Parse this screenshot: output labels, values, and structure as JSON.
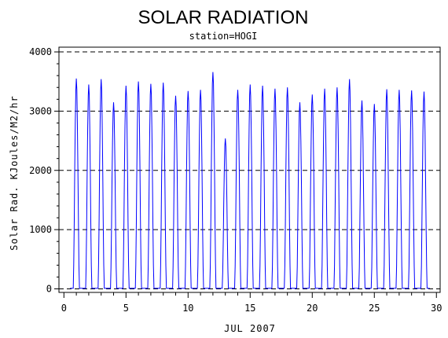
{
  "chart_data": {
    "type": "line",
    "title": "SOLAR RADIATION",
    "subtitle": "station=HOGI",
    "xlabel": "JUL 2007",
    "ylabel": "Solar Rad. KJoules/M2/hr",
    "xlim": [
      -0.4,
      30.3
    ],
    "ylim": [
      -60,
      4080
    ],
    "xticks": [
      0,
      5,
      10,
      15,
      20,
      25,
      30
    ],
    "xtick_labels": [
      "0",
      "5",
      "10",
      "15",
      "20",
      "25",
      "30"
    ],
    "yticks": [
      0,
      1000,
      2000,
      3000,
      4000
    ],
    "ytick_labels": [
      "0",
      "1000",
      "2000",
      "3000",
      "4000"
    ],
    "grid": "horizontal-dashed",
    "color": "#0000ff",
    "series": [
      {
        "name": "",
        "daily_peaks": [
          {
            "day": 1,
            "peak": 3550
          },
          {
            "day": 2,
            "peak": 3450
          },
          {
            "day": 3,
            "peak": 3540
          },
          {
            "day": 4,
            "peak": 3150
          },
          {
            "day": 5,
            "peak": 3430
          },
          {
            "day": 6,
            "peak": 3500
          },
          {
            "day": 7,
            "peak": 3460
          },
          {
            "day": 8,
            "peak": 3480
          },
          {
            "day": 9,
            "peak": 3260
          },
          {
            "day": 10,
            "peak": 3340
          },
          {
            "day": 11,
            "peak": 3360
          },
          {
            "day": 12,
            "peak": 3660
          },
          {
            "day": 13,
            "peak": 2540
          },
          {
            "day": 14,
            "peak": 3360
          },
          {
            "day": 15,
            "peak": 3450
          },
          {
            "day": 16,
            "peak": 3430
          },
          {
            "day": 17,
            "peak": 3380
          },
          {
            "day": 18,
            "peak": 3400
          },
          {
            "day": 19,
            "peak": 3150
          },
          {
            "day": 20,
            "peak": 3280
          },
          {
            "day": 21,
            "peak": 3380
          },
          {
            "day": 22,
            "peak": 3400
          },
          {
            "day": 23,
            "peak": 3540
          },
          {
            "day": 24,
            "peak": 3180
          },
          {
            "day": 25,
            "peak": 3120
          },
          {
            "day": 26,
            "peak": 3370
          },
          {
            "day": 27,
            "peak": 3360
          },
          {
            "day": 28,
            "peak": 3350
          },
          {
            "day": 29,
            "peak": 3330
          }
        ]
      }
    ]
  }
}
